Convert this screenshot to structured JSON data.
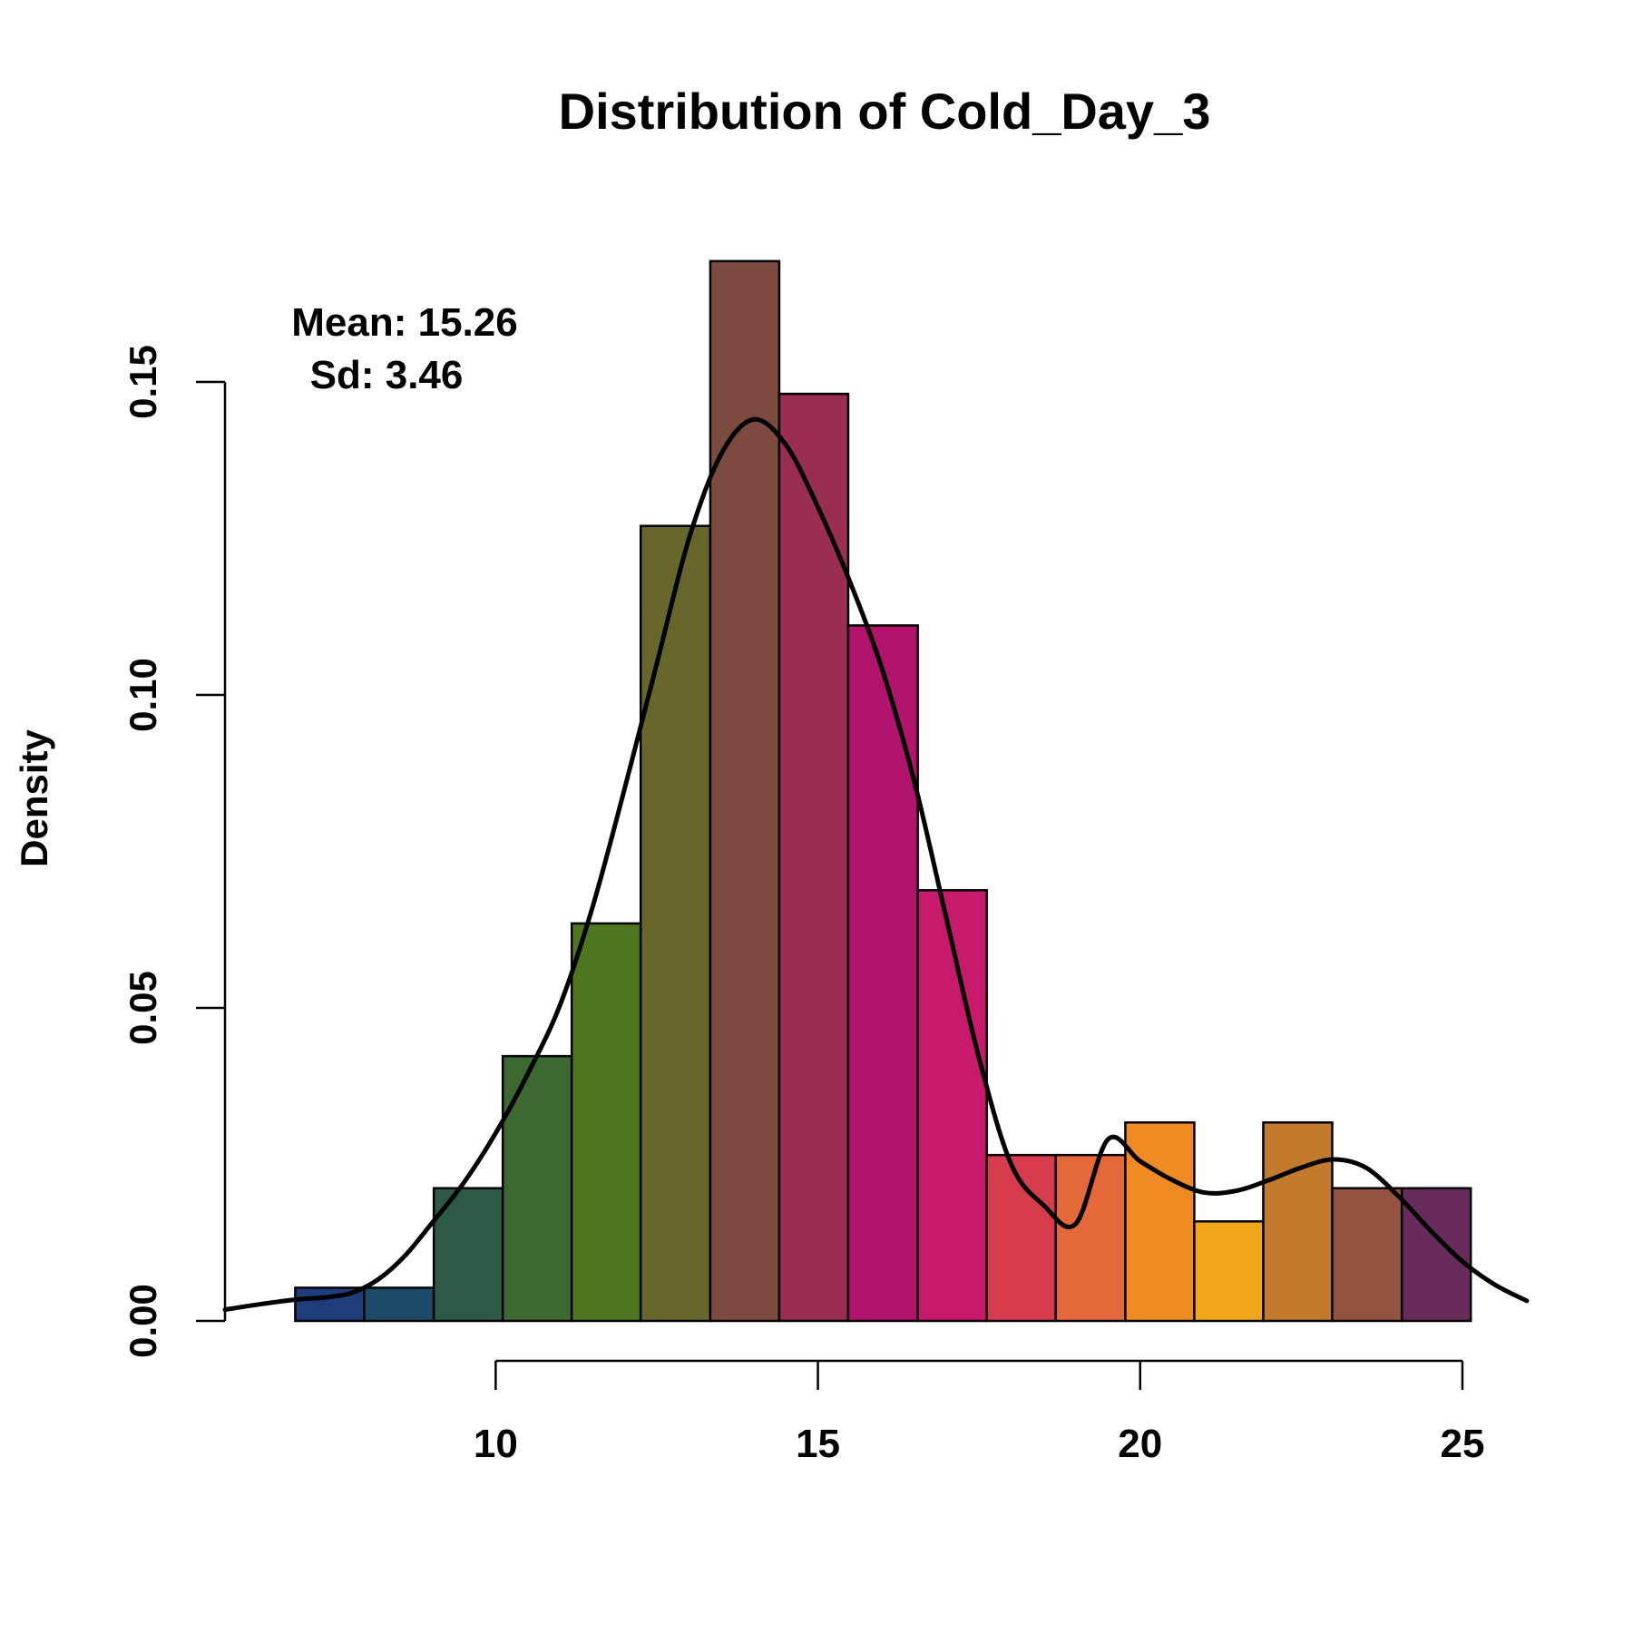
{
  "chart_data": {
    "type": "bar",
    "title": "Distribution of Cold_Day_3",
    "ylabel": "Density",
    "xlabel": "",
    "annotation": {
      "mean": "Mean: 15.26",
      "sd": "Sd: 3.46"
    },
    "xlim": [
      5.8,
      26.0
    ],
    "ylim": [
      0,
      0.15
    ],
    "x_ticks": [
      10,
      15,
      20,
      25
    ],
    "y_ticks": [
      0.0,
      0.05,
      0.1,
      0.15
    ],
    "x_tick_labels": [
      "10",
      "15",
      "20",
      "25"
    ],
    "y_tick_labels": [
      "0.00",
      "0.05",
      "0.10",
      "0.15"
    ],
    "grid": false,
    "bins": [
      {
        "x0": 6.89,
        "x1": 7.96,
        "density": 0.0053,
        "color": "#1f3d7a"
      },
      {
        "x0": 7.96,
        "x1": 9.04,
        "density": 0.0053,
        "color": "#1d4a66"
      },
      {
        "x0": 9.04,
        "x1": 10.11,
        "density": 0.0212,
        "color": "#2c5a46"
      },
      {
        "x0": 10.11,
        "x1": 11.18,
        "density": 0.0423,
        "color": "#3e6832"
      },
      {
        "x0": 11.18,
        "x1": 12.25,
        "density": 0.0635,
        "color": "#4e761e"
      },
      {
        "x0": 12.25,
        "x1": 13.33,
        "density": 0.127,
        "color": "#67672c"
      },
      {
        "x0": 13.33,
        "x1": 14.4,
        "density": 0.1693,
        "color": "#7c4a3e"
      },
      {
        "x0": 14.4,
        "x1": 15.47,
        "density": 0.1481,
        "color": "#992d52"
      },
      {
        "x0": 15.47,
        "x1": 16.55,
        "density": 0.1111,
        "color": "#b2136c"
      },
      {
        "x0": 16.55,
        "x1": 17.62,
        "density": 0.0688,
        "color": "#c81a6a"
      },
      {
        "x0": 17.62,
        "x1": 18.69,
        "density": 0.0265,
        "color": "#d63c4e"
      },
      {
        "x0": 18.69,
        "x1": 19.77,
        "density": 0.0265,
        "color": "#e4683a"
      },
      {
        "x0": 19.77,
        "x1": 20.84,
        "density": 0.0317,
        "color": "#ef8b22"
      },
      {
        "x0": 20.84,
        "x1": 21.91,
        "density": 0.0159,
        "color": "#f2a71a"
      },
      {
        "x0": 21.91,
        "x1": 22.98,
        "density": 0.0317,
        "color": "#c27a2c"
      },
      {
        "x0": 22.98,
        "x1": 24.06,
        "density": 0.0212,
        "color": "#945241"
      },
      {
        "x0": 24.06,
        "x1": 25.13,
        "density": 0.0212,
        "color": "#672c5b"
      }
    ],
    "density_curve": {
      "color": "#000000",
      "points": [
        [
          5.8,
          0.0018
        ],
        [
          6.3,
          0.0026
        ],
        [
          6.89,
          0.0034
        ],
        [
          7.4,
          0.0038
        ],
        [
          7.8,
          0.0046
        ],
        [
          8.2,
          0.0068
        ],
        [
          8.6,
          0.0105
        ],
        [
          9.0,
          0.0155
        ],
        [
          9.5,
          0.022
        ],
        [
          10.0,
          0.03
        ],
        [
          10.5,
          0.0395
        ],
        [
          11.0,
          0.0505
        ],
        [
          11.5,
          0.066
        ],
        [
          12.0,
          0.085
        ],
        [
          12.5,
          0.105
        ],
        [
          13.0,
          0.125
        ],
        [
          13.5,
          0.1385
        ],
        [
          14.0,
          0.144
        ],
        [
          14.5,
          0.14
        ],
        [
          15.0,
          0.13
        ],
        [
          15.5,
          0.118
        ],
        [
          16.0,
          0.104
        ],
        [
          16.5,
          0.086
        ],
        [
          17.0,
          0.064
        ],
        [
          17.5,
          0.042
        ],
        [
          18.0,
          0.025
        ],
        [
          18.5,
          0.0185
        ],
        [
          19.0,
          0.0155
        ],
        [
          19.5,
          0.029
        ],
        [
          20.0,
          0.0255
        ],
        [
          20.5,
          0.0225
        ],
        [
          21.0,
          0.0205
        ],
        [
          21.5,
          0.0208
        ],
        [
          22.0,
          0.0225
        ],
        [
          22.5,
          0.0245
        ],
        [
          23.0,
          0.0258
        ],
        [
          23.5,
          0.0245
        ],
        [
          24.0,
          0.02
        ],
        [
          24.5,
          0.0145
        ],
        [
          25.0,
          0.0095
        ],
        [
          25.5,
          0.0058
        ],
        [
          26.0,
          0.0032
        ]
      ]
    }
  }
}
